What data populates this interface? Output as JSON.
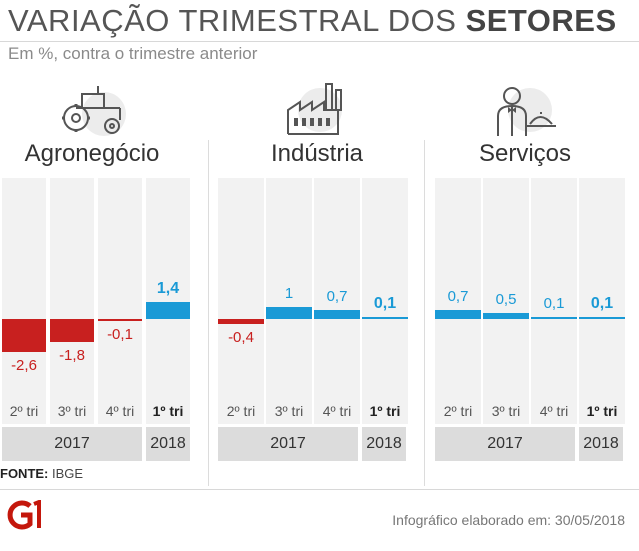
{
  "header": {
    "title_regular": "VARIAÇÃO TRIMESTRAL DOS",
    "title_bold": "SETORES",
    "subtitle": "Em %, contra o trimestre anterior"
  },
  "colors": {
    "negative": "#c8201f",
    "positive": "#1a9ad6",
    "column_bg": "#f2f2f2",
    "year_bg": "#dcdcdc"
  },
  "chart_data": [
    {
      "type": "bar",
      "title": "Agronegócio",
      "icon": "tractor-icon",
      "categories": [
        "2º tri",
        "3º tri",
        "4º tri",
        "1º tri"
      ],
      "category_years": [
        "2017",
        "2017",
        "2017",
        "2018"
      ],
      "values": [
        -2.6,
        -1.8,
        -0.1,
        1.4
      ],
      "value_labels": [
        "-2,6",
        "-1,8",
        "-0,1",
        "1,4"
      ],
      "highlight_last": true,
      "year_groups": [
        {
          "label": "2017",
          "count": 3
        },
        {
          "label": "2018",
          "count": 1
        }
      ]
    },
    {
      "type": "bar",
      "title": "Indústria",
      "icon": "factory-icon",
      "categories": [
        "2º tri",
        "3º tri",
        "4º tri",
        "1º tri"
      ],
      "category_years": [
        "2017",
        "2017",
        "2017",
        "2018"
      ],
      "values": [
        -0.4,
        1.0,
        0.7,
        0.1
      ],
      "value_labels": [
        "-0,4",
        "1",
        "0,7",
        "0,1"
      ],
      "highlight_last": true,
      "year_groups": [
        {
          "label": "2017",
          "count": 3
        },
        {
          "label": "2018",
          "count": 1
        }
      ]
    },
    {
      "type": "bar",
      "title": "Serviços",
      "icon": "waiter-icon",
      "categories": [
        "2º tri",
        "3º tri",
        "4º tri",
        "1º tri"
      ],
      "category_years": [
        "2017",
        "2017",
        "2017",
        "2018"
      ],
      "values": [
        0.7,
        0.5,
        0.1,
        0.1
      ],
      "value_labels": [
        "0,7",
        "0,5",
        "0,1",
        "0,1"
      ],
      "highlight_last": true,
      "year_groups": [
        {
          "label": "2017",
          "count": 3
        },
        {
          "label": "2018",
          "count": 1
        }
      ]
    }
  ],
  "footer": {
    "source_label": "FONTE:",
    "source_value": "IBGE",
    "credit": "Infográfico elaborado em: 30/05/2018",
    "logo_text": "G1"
  }
}
